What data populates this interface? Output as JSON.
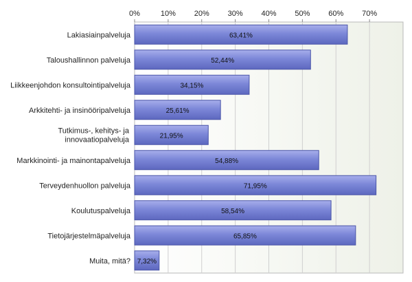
{
  "chart_data": {
    "type": "bar",
    "orientation": "horizontal",
    "categories": [
      "Lakiasiainpalveluja",
      "Taloushallinnon palveluja",
      "Liikkeenjohdon konsultointipalveluja",
      "Arkkitehti- ja insinööripalveluja",
      "Tutkimus-, kehitys- ja innovaatiopalveluja",
      "Markkinointi- ja mainontapalveluja",
      "Terveydenhuollon palveluja",
      "Koulutuspalveluja",
      "Tietojärjestelmäpalveluja",
      "Muita, mitä?"
    ],
    "values": [
      63.41,
      52.44,
      34.15,
      25.61,
      21.95,
      54.88,
      71.95,
      58.54,
      65.85,
      7.32
    ],
    "data_labels": [
      "63,41%",
      "52,44%",
      "34,15%",
      "25,61%",
      "21,95%",
      "54,88%",
      "71,95%",
      "58,54%",
      "65,85%",
      "7,32%"
    ],
    "x_ticks": [
      0,
      10,
      20,
      30,
      40,
      50,
      60,
      70
    ],
    "x_tick_labels": [
      "0%",
      "10%",
      "20%",
      "30%",
      "40%",
      "50%",
      "60%",
      "70%"
    ],
    "xlim": [
      0,
      80
    ],
    "axis_position": "top",
    "grid": true,
    "bar_color": "#7b86d6",
    "bar_edge_color": "#4a55a8",
    "plot_bg_color": "#f2f4ee"
  }
}
